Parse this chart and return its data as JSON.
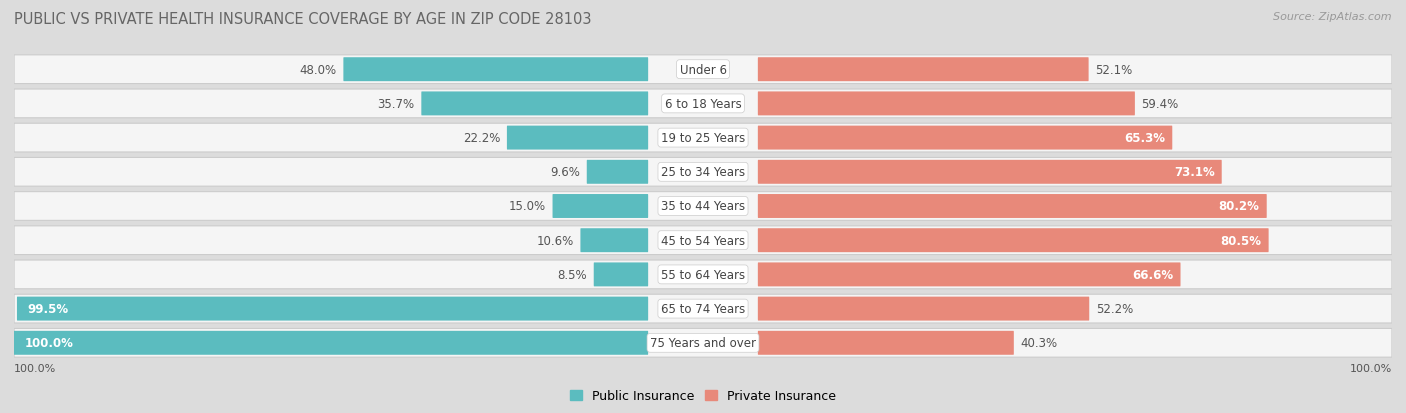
{
  "title": "PUBLIC VS PRIVATE HEALTH INSURANCE COVERAGE BY AGE IN ZIP CODE 28103",
  "source": "Source: ZipAtlas.com",
  "categories": [
    "Under 6",
    "6 to 18 Years",
    "19 to 25 Years",
    "25 to 34 Years",
    "35 to 44 Years",
    "45 to 54 Years",
    "55 to 64 Years",
    "65 to 74 Years",
    "75 Years and over"
  ],
  "public_values": [
    48.0,
    35.7,
    22.2,
    9.6,
    15.0,
    10.6,
    8.5,
    99.5,
    100.0
  ],
  "private_values": [
    52.1,
    59.4,
    65.3,
    73.1,
    80.2,
    80.5,
    66.6,
    52.2,
    40.3
  ],
  "public_color": "#5bbcbf",
  "private_color": "#e8897a",
  "public_color_light": "#a8dfe0",
  "private_color_light": "#f0b8ae",
  "bg_color": "#dcdcdc",
  "row_bg": "#f5f5f5",
  "row_border": "#cccccc",
  "title_color": "#666666",
  "source_color": "#999999",
  "label_dark": "#555555",
  "label_white": "#ffffff",
  "max_value": 100.0,
  "title_fontsize": 10.5,
  "bar_label_fontsize": 8.5,
  "cat_label_fontsize": 8.5,
  "legend_fontsize": 9,
  "source_fontsize": 8,
  "axis_label_fontsize": 8
}
